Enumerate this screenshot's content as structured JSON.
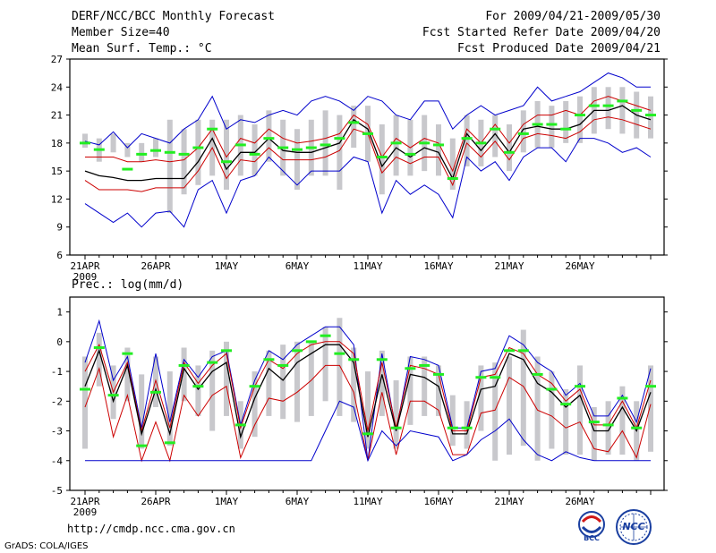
{
  "header": {
    "title_left": "DERF/NCC/BCC Monthly Forecast",
    "member_size": "Member Size=40",
    "variable": "Mean Surf. Temp.: °C",
    "period": "For 2009/04/21-2009/05/30",
    "started": "Fcst Started Refer Date 2009/04/20",
    "produced": "Fcst Produced Date 2009/04/21"
  },
  "footer": {
    "url": "http://cmdp.ncc.cma.gov.cn",
    "grads": "GrADS: COLA/IGES",
    "bcc_logo_text": "BCC",
    "ncc_logo_text": "NCC"
  },
  "colors": {
    "ensemble_mean": "#000000",
    "spread": "#cc0000",
    "extreme": "#0000cc",
    "box": "#c8c8cc",
    "member_mark": "#22ee22"
  },
  "chart_data": [
    {
      "type": "line",
      "title": "Mean Surf. Temp.: °C",
      "ylim": [
        6,
        27
      ],
      "yticks": [
        6,
        9,
        12,
        15,
        18,
        21,
        24,
        27
      ],
      "xticks": [
        {
          "day": 0,
          "label": "21APR"
        },
        {
          "day": 5,
          "label": "26APR"
        },
        {
          "day": 10,
          "label": "1MAY"
        },
        {
          "day": 15,
          "label": "6MAY"
        },
        {
          "day": 20,
          "label": "11MAY"
        },
        {
          "day": 25,
          "label": "16MAY"
        },
        {
          "day": 30,
          "label": "21MAY"
        },
        {
          "day": 35,
          "label": "26MAY"
        }
      ],
      "year_label": "2009",
      "series": [
        {
          "name": "max",
          "values": [
            18.2,
            17.8,
            19.2,
            17.5,
            19.0,
            18.5,
            18.0,
            19.5,
            20.5,
            23.0,
            19.5,
            20.5,
            20.2,
            21.0,
            21.5,
            21.0,
            22.5,
            23.0,
            22.5,
            21.5,
            23.0,
            22.5,
            21.0,
            20.5,
            22.5,
            22.5,
            19.5,
            21.0,
            22.0,
            21.0,
            21.5,
            22.0,
            24.0,
            22.5,
            23.0,
            23.5,
            24.5,
            25.5,
            25.0,
            24.0,
            24.0
          ]
        },
        {
          "name": "upper",
          "values": [
            16.5,
            16.5,
            16.5,
            16.0,
            16.0,
            16.2,
            16.0,
            16.2,
            17.5,
            19.5,
            16.5,
            18.5,
            18.0,
            19.5,
            18.5,
            18.0,
            18.2,
            18.5,
            19.0,
            21.0,
            20.0,
            16.5,
            18.5,
            17.5,
            18.5,
            18.0,
            15.0,
            19.5,
            18.0,
            20.0,
            18.0,
            20.0,
            21.0,
            21.0,
            21.5,
            21.0,
            22.5,
            23.0,
            22.5,
            22.0,
            21.5
          ]
        },
        {
          "name": "mean",
          "values": [
            15.0,
            14.5,
            14.3,
            14.0,
            14.0,
            14.2,
            14.2,
            14.2,
            16.0,
            18.5,
            15.2,
            17.0,
            17.0,
            18.5,
            17.2,
            17.0,
            17.0,
            17.5,
            18.0,
            20.5,
            19.5,
            15.5,
            17.5,
            16.5,
            17.5,
            17.0,
            14.2,
            19.0,
            17.2,
            19.0,
            17.0,
            19.5,
            19.8,
            19.5,
            19.5,
            20.0,
            21.5,
            21.5,
            22.0,
            21.0,
            20.5
          ]
        },
        {
          "name": "lower",
          "values": [
            14.0,
            13.0,
            13.0,
            13.0,
            12.8,
            13.2,
            13.2,
            13.2,
            15.0,
            17.5,
            14.2,
            16.2,
            16.0,
            17.5,
            16.2,
            16.2,
            16.2,
            16.5,
            17.2,
            19.5,
            19.0,
            14.8,
            16.5,
            15.8,
            16.5,
            16.5,
            13.5,
            18.0,
            16.5,
            18.2,
            16.2,
            18.5,
            19.0,
            18.8,
            18.5,
            19.2,
            20.5,
            20.8,
            20.5,
            20.0,
            19.5
          ]
        },
        {
          "name": "min",
          "values": [
            11.5,
            10.5,
            9.5,
            10.5,
            9.0,
            10.5,
            10.7,
            9.0,
            13.0,
            14.0,
            10.5,
            14.0,
            14.5,
            16.5,
            15.0,
            13.5,
            15.0,
            15.0,
            15.0,
            16.5,
            16.0,
            10.5,
            14.0,
            12.5,
            13.5,
            12.5,
            10.0,
            16.5,
            15.0,
            16.0,
            14.0,
            16.5,
            17.5,
            17.5,
            16.0,
            18.5,
            18.5,
            18.0,
            17.0,
            17.5,
            16.5
          ]
        },
        {
          "name": "member_marks",
          "values": [
            18.0,
            17.3,
            null,
            15.2,
            16.8,
            17.2,
            17.0,
            16.8,
            17.5,
            19.5,
            16.0,
            17.8,
            16.8,
            18.5,
            17.5,
            17.3,
            17.5,
            17.8,
            18.5,
            20.2,
            19.0,
            16.5,
            18.0,
            16.8,
            18.0,
            17.8,
            14.2,
            18.5,
            18.0,
            19.5,
            17.0,
            19.0,
            20.0,
            20.0,
            19.5,
            21.0,
            22.0,
            22.0,
            22.5,
            21.5,
            21.0
          ]
        }
      ],
      "boxes": [
        [
          17.5,
          19.0
        ],
        [
          16.0,
          18.5
        ],
        [
          17.0,
          19.0
        ],
        [
          16.5,
          18.0
        ],
        [
          16.0,
          18.0
        ],
        [
          16.5,
          18.5
        ],
        [
          10.5,
          20.5
        ],
        [
          12.5,
          19.5
        ],
        [
          13.5,
          20.5
        ],
        [
          14.5,
          20.5
        ],
        [
          13.0,
          20.5
        ],
        [
          14.5,
          21.0
        ],
        [
          14.5,
          20.0
        ],
        [
          16.0,
          21.5
        ],
        [
          14.5,
          20.5
        ],
        [
          13.0,
          19.5
        ],
        [
          14.5,
          20.5
        ],
        [
          14.5,
          21.5
        ],
        [
          13.0,
          21.0
        ],
        [
          17.5,
          22.0
        ],
        [
          16.0,
          22.0
        ],
        [
          12.5,
          20.0
        ],
        [
          14.5,
          21.0
        ],
        [
          14.5,
          20.5
        ],
        [
          15.0,
          21.0
        ],
        [
          14.5,
          20.0
        ],
        [
          13.0,
          18.5
        ],
        [
          15.5,
          21.0
        ],
        [
          15.5,
          20.5
        ],
        [
          16.5,
          21.0
        ],
        [
          15.0,
          20.0
        ],
        [
          17.0,
          21.5
        ],
        [
          17.5,
          22.5
        ],
        [
          17.5,
          22.0
        ],
        [
          18.0,
          22.5
        ],
        [
          18.0,
          23.0
        ],
        [
          19.0,
          24.0
        ],
        [
          19.5,
          24.0
        ],
        [
          19.0,
          24.0
        ],
        [
          18.5,
          23.5
        ],
        [
          18.5,
          23.0
        ]
      ]
    },
    {
      "type": "line",
      "title": "Prec.: log(mm/d)",
      "ylim": [
        -5,
        1.5
      ],
      "yticks": [
        -5,
        -4,
        -3,
        -2,
        -1,
        0,
        1
      ],
      "xticks": [
        {
          "day": 0,
          "label": "21APR"
        },
        {
          "day": 5,
          "label": "26APR"
        },
        {
          "day": 10,
          "label": "1MAY"
        },
        {
          "day": 15,
          "label": "6MAY"
        },
        {
          "day": 20,
          "label": "11MAY"
        },
        {
          "day": 25,
          "label": "16MAY"
        },
        {
          "day": 30,
          "label": "21MAY"
        },
        {
          "day": 35,
          "label": "26MAY"
        }
      ],
      "year_label": "2009",
      "series": [
        {
          "name": "max",
          "values": [
            -0.7,
            0.7,
            -1.3,
            -0.5,
            -2.9,
            -0.4,
            -2.7,
            -0.6,
            -1.2,
            -0.5,
            -0.3,
            -2.8,
            -1.3,
            -0.3,
            -0.6,
            -0.1,
            0.2,
            0.5,
            0.5,
            -0.1,
            -4.0,
            -0.4,
            -3.0,
            -0.5,
            -0.6,
            -0.8,
            -2.9,
            -2.9,
            -1.0,
            -0.9,
            0.2,
            -0.1,
            -0.7,
            -1.0,
            -1.8,
            -1.4,
            -2.5,
            -2.5,
            -1.8,
            -2.7,
            -0.9
          ]
        },
        {
          "name": "upper",
          "values": [
            -1.0,
            -0.1,
            -1.7,
            -0.7,
            -3.0,
            -1.3,
            -2.9,
            -0.7,
            -1.4,
            -0.8,
            -0.4,
            -2.9,
            -1.5,
            -0.6,
            -0.9,
            -0.4,
            -0.1,
            0.0,
            0.0,
            -0.4,
            -3.0,
            -0.7,
            -2.9,
            -0.8,
            -0.9,
            -1.1,
            -3.0,
            -3.0,
            -1.2,
            -1.1,
            -0.2,
            -0.4,
            -1.1,
            -1.4,
            -2.0,
            -1.6,
            -2.8,
            -2.8,
            -2.0,
            -2.9,
            -1.3
          ]
        },
        {
          "name": "mean",
          "values": [
            -1.5,
            -0.3,
            -2.0,
            -0.8,
            -3.1,
            -1.6,
            -3.1,
            -0.9,
            -1.6,
            -1.0,
            -0.7,
            -3.2,
            -1.9,
            -0.9,
            -1.3,
            -0.7,
            -0.4,
            -0.1,
            -0.1,
            -0.7,
            -3.2,
            -1.1,
            -3.0,
            -1.1,
            -1.2,
            -1.5,
            -3.1,
            -3.1,
            -1.6,
            -1.5,
            -0.4,
            -0.6,
            -1.4,
            -1.7,
            -2.2,
            -1.8,
            -3.0,
            -3.0,
            -2.2,
            -3.0,
            -1.7
          ]
        },
        {
          "name": "lower",
          "values": [
            -2.2,
            -0.9,
            -3.2,
            -1.8,
            -4.0,
            -2.7,
            -4.0,
            -1.8,
            -2.5,
            -1.8,
            -1.5,
            -3.9,
            -2.8,
            -1.9,
            -2.0,
            -1.7,
            -1.3,
            -0.8,
            -0.8,
            -1.7,
            -4.0,
            -1.7,
            -3.8,
            -2.0,
            -2.0,
            -2.3,
            -3.8,
            -3.8,
            -2.4,
            -2.3,
            -1.2,
            -1.5,
            -2.3,
            -2.5,
            -2.9,
            -2.7,
            -3.6,
            -3.7,
            -3.0,
            -3.9,
            -2.1
          ]
        },
        {
          "name": "min",
          "values": [
            -4.0,
            -4.0,
            -4.0,
            -4.0,
            -4.0,
            -4.0,
            -4.0,
            -4.0,
            -4.0,
            -4.0,
            -4.0,
            -4.0,
            -4.0,
            -4.0,
            -4.0,
            -4.0,
            -4.0,
            -3.0,
            -2.0,
            -2.2,
            -4.0,
            -3.0,
            -3.5,
            -3.0,
            -3.1,
            -3.2,
            -4.0,
            -3.8,
            -3.3,
            -3.0,
            -2.6,
            -3.3,
            -3.8,
            -4.0,
            -3.7,
            -3.9,
            -4.0,
            -4.0,
            -4.0,
            -4.0,
            -4.0
          ]
        },
        {
          "name": "member_marks",
          "values": [
            -1.6,
            -0.2,
            -1.8,
            -0.4,
            -3.5,
            -1.7,
            -3.4,
            -0.8,
            -1.5,
            -0.7,
            -0.3,
            -2.8,
            -1.5,
            -0.6,
            -0.8,
            -0.3,
            0.0,
            0.2,
            -0.4,
            -0.6,
            -3.1,
            -0.6,
            -2.9,
            -0.9,
            -0.8,
            -1.1,
            -2.9,
            -2.9,
            -1.2,
            -1.2,
            -0.3,
            -0.3,
            -1.1,
            -1.6,
            -2.1,
            -1.5,
            -2.7,
            -2.8,
            -1.9,
            -2.9,
            -1.5
          ]
        }
      ],
      "boxes": [
        [
          -3.6,
          -0.5
        ],
        [
          -1.5,
          0.3
        ],
        [
          -2.6,
          -0.8
        ],
        [
          -2.0,
          -0.2
        ],
        [
          -3.6,
          -1.1
        ],
        [
          -2.2,
          -0.5
        ],
        [
          -3.5,
          -1.0
        ],
        [
          -2.0,
          -0.2
        ],
        [
          -2.5,
          -0.8
        ],
        [
          -3.0,
          -0.3
        ],
        [
          -2.5,
          0.0
        ],
        [
          -3.6,
          -2.0
        ],
        [
          -3.2,
          -1.0
        ],
        [
          -2.5,
          -0.3
        ],
        [
          -2.6,
          -0.1
        ],
        [
          -2.7,
          0.0
        ],
        [
          -2.5,
          0.0
        ],
        [
          -2.0,
          0.5
        ],
        [
          -2.5,
          0.8
        ],
        [
          -2.7,
          -0.2
        ],
        [
          -3.6,
          -1.0
        ],
        [
          -2.5,
          -0.3
        ],
        [
          -3.6,
          -1.3
        ],
        [
          -2.8,
          -0.5
        ],
        [
          -2.5,
          -0.5
        ],
        [
          -2.5,
          -0.8
        ],
        [
          -3.5,
          -1.8
        ],
        [
          -3.6,
          -2.0
        ],
        [
          -3.0,
          -0.8
        ],
        [
          -4.0,
          -0.7
        ],
        [
          -3.8,
          -0.5
        ],
        [
          -3.5,
          0.4
        ],
        [
          -4.0,
          -0.5
        ],
        [
          -3.6,
          -1.0
        ],
        [
          -3.8,
          -1.6
        ],
        [
          -3.8,
          -0.8
        ],
        [
          -4.0,
          -2.2
        ],
        [
          -3.8,
          -2.0
        ],
        [
          -3.8,
          -1.5
        ],
        [
          -4.0,
          -2.0
        ],
        [
          -3.7,
          -0.8
        ]
      ]
    }
  ]
}
